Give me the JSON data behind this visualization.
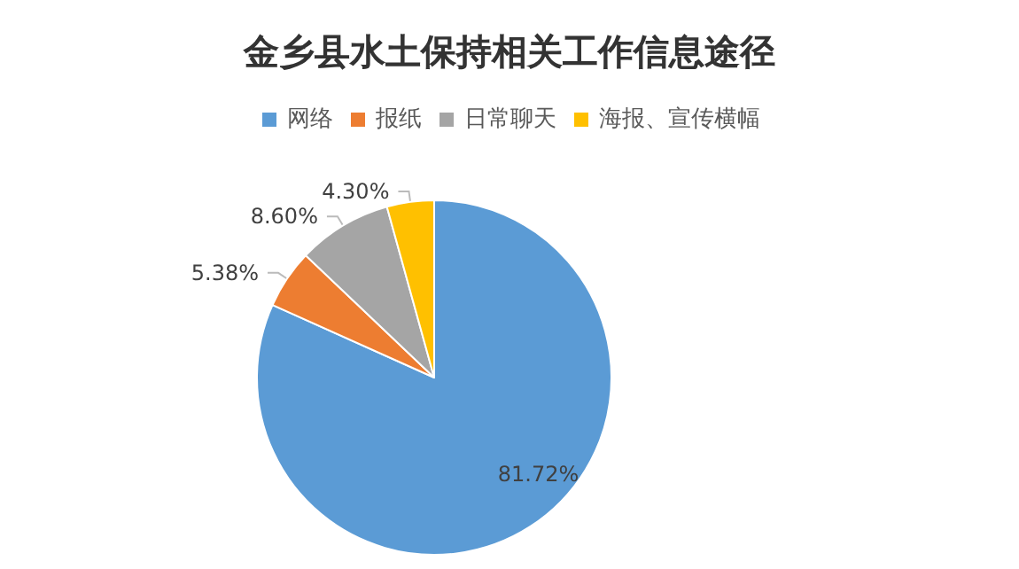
{
  "chart_data": {
    "type": "pie",
    "title": "金乡县水土保持相关工作信息途径",
    "categories": [
      "网络",
      "报纸",
      "日常聊天",
      "海报、宣传横幅"
    ],
    "values": [
      81.72,
      5.38,
      8.6,
      4.3
    ],
    "value_labels": [
      "81.72%",
      "5.38%",
      "8.60%",
      "4.30%"
    ],
    "colors": [
      "#5b9bd5",
      "#ed7d31",
      "#a5a5a5",
      "#ffc000"
    ],
    "legend": "top"
  }
}
